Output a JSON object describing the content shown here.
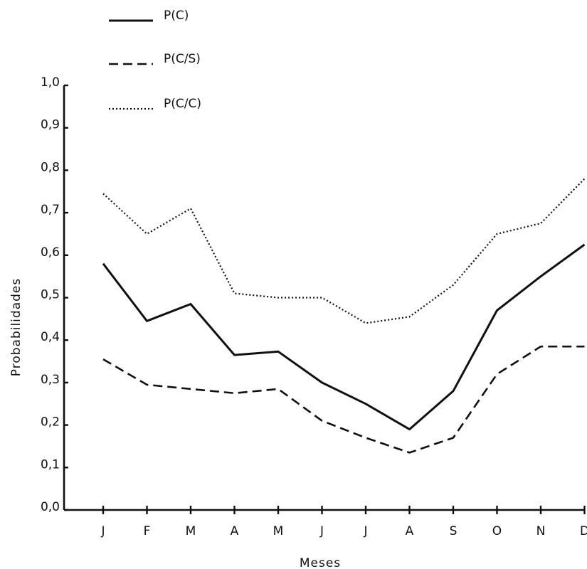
{
  "chart_data": {
    "type": "line",
    "title": "",
    "xlabel": "Meses",
    "ylabel": "Probabilidades",
    "categories": [
      "J",
      "F",
      "M",
      "A",
      "M",
      "J",
      "J",
      "A",
      "S",
      "O",
      "N",
      "D"
    ],
    "ylim": [
      0.0,
      1.0
    ],
    "yticks": [
      "0,0",
      "0,1",
      "0,2",
      "0,3",
      "0,4",
      "0,5",
      "0,6",
      "0,7",
      "0,8",
      "0,9",
      "1,0"
    ],
    "grid": false,
    "legend_position": "top-left",
    "series": [
      {
        "name": "P(C)",
        "style": "solid",
        "color": "#111111",
        "values": [
          0.58,
          0.445,
          0.485,
          0.365,
          0.373,
          0.3,
          0.25,
          0.19,
          0.28,
          0.47,
          0.55,
          0.625
        ]
      },
      {
        "name": "P(C/S)",
        "style": "dashed",
        "color": "#111111",
        "values": [
          0.355,
          0.295,
          0.285,
          0.275,
          0.285,
          0.21,
          0.17,
          0.135,
          0.17,
          0.32,
          0.385,
          0.385
        ]
      },
      {
        "name": "P(C/C)",
        "style": "dotted",
        "color": "#111111",
        "values": [
          0.745,
          0.65,
          0.71,
          0.51,
          0.5,
          0.5,
          0.44,
          0.455,
          0.53,
          0.65,
          0.675,
          0.78
        ]
      }
    ]
  }
}
